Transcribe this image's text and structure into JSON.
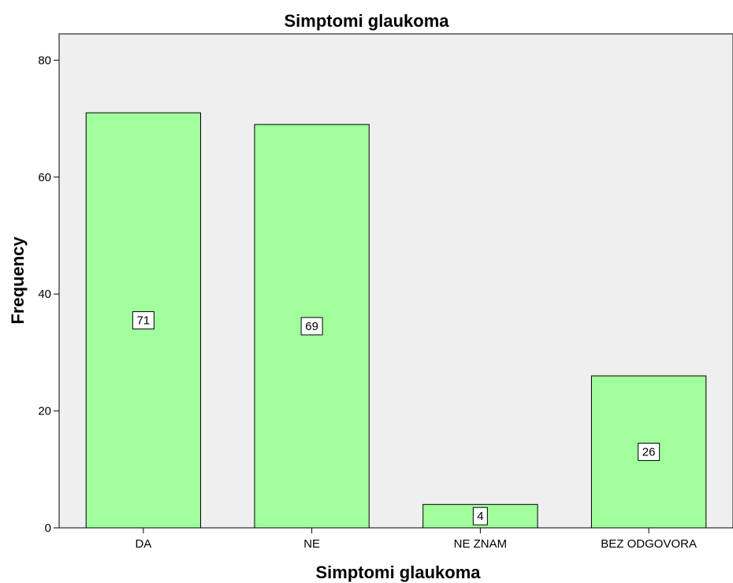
{
  "chart_data": {
    "type": "bar",
    "title": "Simptomi glaukoma",
    "xlabel": "Simptomi glaukoma",
    "ylabel": "Frequency",
    "categories": [
      "DA",
      "NE",
      "NE ZNAM",
      "BEZ ODGOVORA"
    ],
    "values": [
      71,
      69,
      4,
      26
    ],
    "data_labels": [
      "71",
      "69",
      "4",
      "26"
    ],
    "yticks": [
      "0",
      "20",
      "40",
      "60",
      "80"
    ],
    "ylim": [
      0,
      84.5
    ],
    "grid": false,
    "legend": "none",
    "colors": {
      "bar_fill": "#a0ff9c",
      "plot_background": "#efefef",
      "bar_stroke": "#000000"
    }
  }
}
